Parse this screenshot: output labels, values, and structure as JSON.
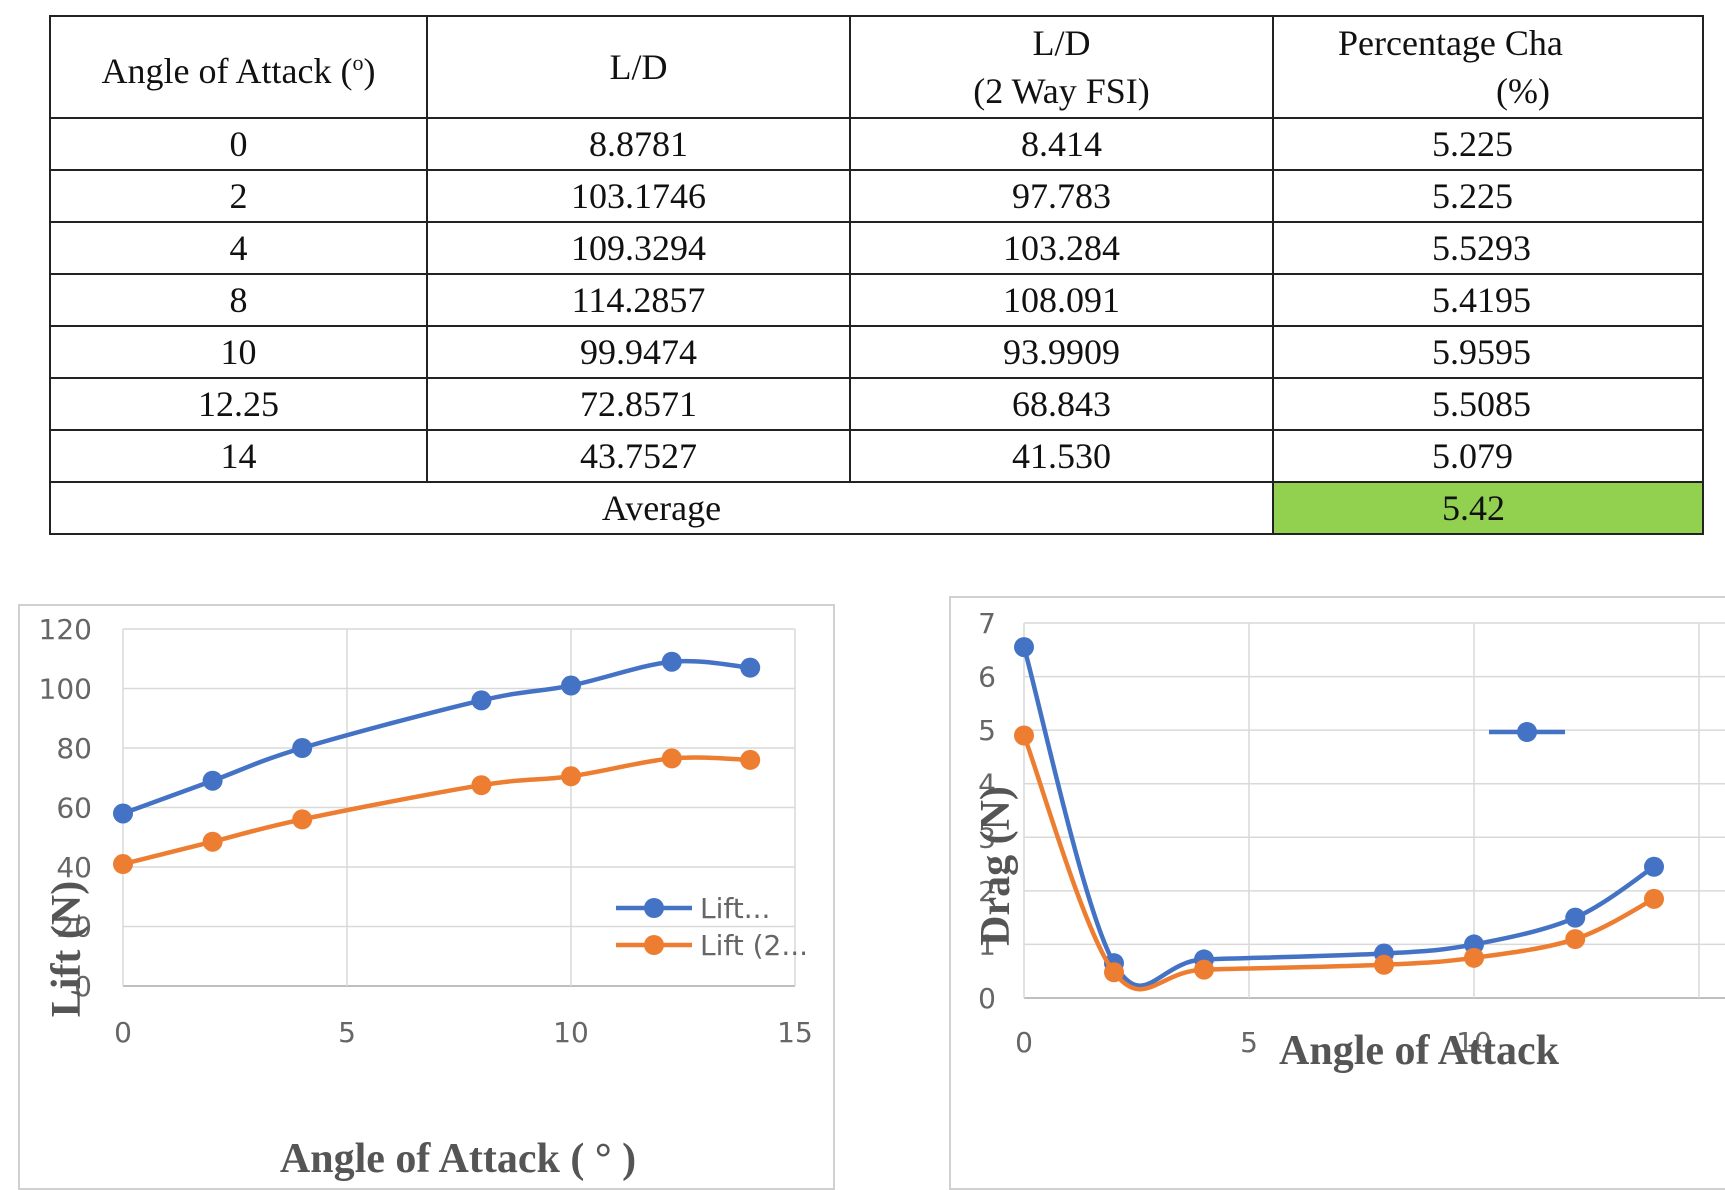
{
  "table": {
    "headers": [
      {
        "line1": "Angle of Attack (",
        "sup": "o",
        "line1_tail": ")",
        "line2": ""
      },
      {
        "line1": "L/D",
        "line2": ""
      },
      {
        "line1": "L/D",
        "line2": "(2 Way FSI)"
      },
      {
        "line1": "Percentage Cha",
        "line2": "(%)"
      }
    ],
    "rows": [
      [
        "0",
        "8.8781",
        "8.414",
        "5.225"
      ],
      [
        "2",
        "103.1746",
        "97.783",
        "5.225"
      ],
      [
        "4",
        "109.3294",
        "103.284",
        "5.5293"
      ],
      [
        "8",
        "114.2857",
        "108.091",
        "5.4195"
      ],
      [
        "10",
        "99.9474",
        "93.9909",
        "5.9595"
      ],
      [
        "12.25",
        "72.8571",
        "68.843",
        "5.5085"
      ],
      [
        "14",
        "43.7527",
        "41.530",
        "5.079"
      ]
    ],
    "average_label": "Average",
    "average_value": "5.42",
    "average_color": "#92d050"
  },
  "chart_data": [
    {
      "type": "line",
      "xlabel": "Angle of Attack ( ° )",
      "ylabel": "Lift (N)",
      "xlim": [
        0,
        15
      ],
      "ylim": [
        0,
        120
      ],
      "xticks": [
        "0",
        "5",
        "10",
        "15"
      ],
      "yticks": [
        "0",
        "20",
        "40",
        "60",
        "80",
        "100",
        "120"
      ],
      "grid": true,
      "legend_position": "bottom-right",
      "series": [
        {
          "name": "Lift...",
          "color": "#4472c4",
          "x": [
            0,
            2,
            4,
            8,
            10,
            12.25,
            14
          ],
          "y": [
            58,
            69,
            80,
            96,
            101,
            109,
            107
          ]
        },
        {
          "name": "Lift (2...",
          "color": "#ed7d31",
          "x": [
            0,
            2,
            4,
            8,
            10,
            12.25,
            14
          ],
          "y": [
            41,
            48.5,
            56,
            67.5,
            70.5,
            76.5,
            76
          ]
        }
      ]
    },
    {
      "type": "line",
      "xlabel": "Angle of Attack",
      "ylabel": "Drag (N)",
      "xlim": [
        0,
        15
      ],
      "ylim": [
        0,
        7
      ],
      "xticks": [
        "0",
        "5",
        "10"
      ],
      "yticks": [
        "0",
        "1",
        "2",
        "3",
        "4",
        "5",
        "6",
        "7"
      ],
      "grid": true,
      "legend_position": "right",
      "series": [
        {
          "color": "#4472c4",
          "x": [
            0,
            2,
            4,
            8,
            10,
            12.25,
            14
          ],
          "y": [
            6.55,
            0.65,
            0.72,
            0.83,
            1.0,
            1.5,
            2.45
          ]
        },
        {
          "color": "#ed7d31",
          "x": [
            0,
            2,
            4,
            8,
            10,
            12.25,
            14
          ],
          "y": [
            4.9,
            0.48,
            0.53,
            0.62,
            0.75,
            1.1,
            1.85
          ]
        }
      ]
    }
  ]
}
